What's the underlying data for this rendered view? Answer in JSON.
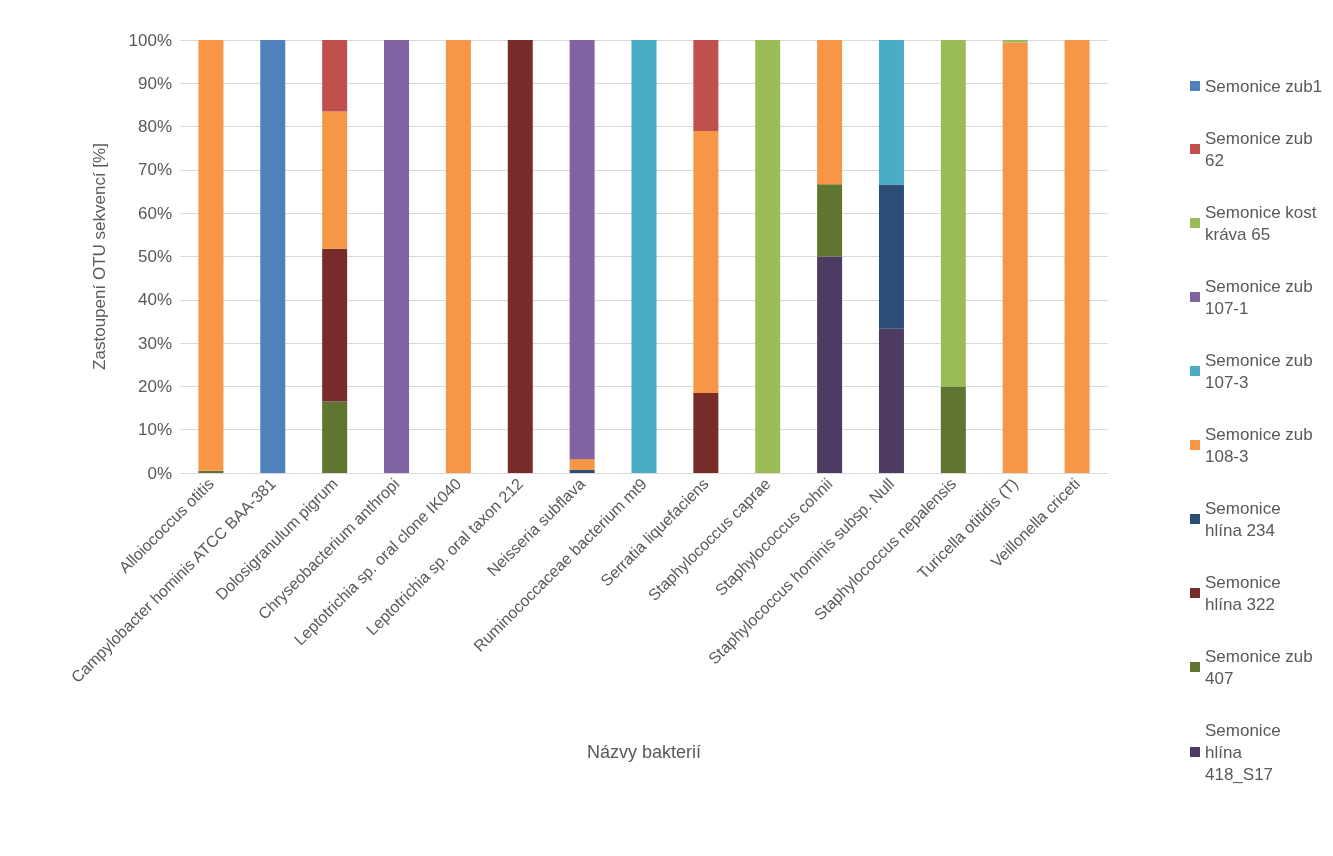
{
  "chart_data": {
    "type": "bar",
    "stacked": true,
    "xlabel": "Názvy bakterií",
    "ylabel": "Zastoupení OTU sekvencí [%]",
    "categories": [
      "Alloiococcus otitis",
      "Campylobacter hominis ATCC BAA-381",
      "Dolosigranulum pigrum",
      "Chryseobacterium anthropi",
      "Leptotrichia sp. oral clone IK040",
      "Leptotrichia sp. oral taxon 212",
      "Neisseria subflava",
      "Ruminococcaceae bacterium mt9",
      "Serratia liquefaciens",
      "Staphylococcus caprae",
      "Staphylococcus cohnii",
      "Staphylococcus hominis subsp. Null",
      "Staphylococcus nepalensis",
      "Turicella otitidis (T)",
      "Veillonella criceti"
    ],
    "series": [
      {
        "name": "Semonice hlína 418_S17",
        "color": "#4d3b62",
        "values": [
          0,
          0,
          0,
          0,
          0,
          0,
          0,
          0,
          0,
          0,
          50,
          33.3,
          0,
          0,
          0
        ]
      },
      {
        "name": "Semonice zub 407",
        "color": "#5f7530",
        "values": [
          0.5,
          0,
          16.5,
          0,
          0,
          0,
          0,
          0,
          0,
          0,
          16.7,
          0,
          20,
          0,
          0
        ]
      },
      {
        "name": "Semonice hlína 322",
        "color": "#772c2a",
        "values": [
          0,
          0,
          35.3,
          0,
          0,
          100,
          0,
          0,
          18.5,
          0,
          0,
          0,
          0,
          0,
          0
        ]
      },
      {
        "name": "Semonice hlína 234",
        "color": "#2c4d75",
        "values": [
          0,
          0,
          0,
          0,
          0,
          0,
          0.7,
          0,
          0,
          0,
          0,
          33.3,
          0,
          0,
          0
        ]
      },
      {
        "name": "Semonice zub 108-3",
        "color": "#f79646",
        "values": [
          99.5,
          0,
          31.7,
          0,
          100,
          0,
          2.5,
          0,
          60.5,
          0,
          33.3,
          0,
          0,
          99.4,
          100
        ]
      },
      {
        "name": "Semonice zub 107-3",
        "color": "#4bacc6",
        "values": [
          0,
          0,
          0,
          0,
          0,
          0,
          0,
          100,
          0,
          0,
          0,
          33.4,
          0,
          0,
          0
        ]
      },
      {
        "name": "Semonice zub 107-1",
        "color": "#8064a2",
        "values": [
          0,
          0,
          0,
          100,
          0,
          0,
          96.8,
          0,
          0,
          0,
          0,
          0,
          0,
          0,
          0
        ]
      },
      {
        "name": "Semonice kost kráva 65",
        "color": "#9bbb59",
        "values": [
          0,
          0,
          0,
          0,
          0,
          0,
          0,
          0,
          0,
          100,
          0,
          0,
          80,
          0.6,
          0
        ]
      },
      {
        "name": "Semonice zub 62",
        "color": "#c0504d",
        "values": [
          0,
          0,
          16.5,
          0,
          0,
          0,
          0,
          0,
          21,
          0,
          0,
          0,
          0,
          0,
          0
        ]
      },
      {
        "name": "Semonice zub1",
        "color": "#4f81bd",
        "values": [
          0,
          100,
          0,
          0,
          0,
          0,
          0,
          0,
          0,
          0,
          0,
          0,
          0,
          0,
          0
        ]
      }
    ],
    "ylim": [
      0,
      100
    ],
    "yticks": [
      {
        "value": 0,
        "label": "0%"
      },
      {
        "value": 10,
        "label": "10%"
      },
      {
        "value": 20,
        "label": "20%"
      },
      {
        "value": 30,
        "label": "30%"
      },
      {
        "value": 40,
        "label": "40%"
      },
      {
        "value": 50,
        "label": "50%"
      },
      {
        "value": 60,
        "label": "60%"
      },
      {
        "value": 70,
        "label": "70%"
      },
      {
        "value": 80,
        "label": "80%"
      },
      {
        "value": 90,
        "label": "90%"
      },
      {
        "value": 100,
        "label": "100%"
      }
    ],
    "grid": "y",
    "legend": "right"
  }
}
